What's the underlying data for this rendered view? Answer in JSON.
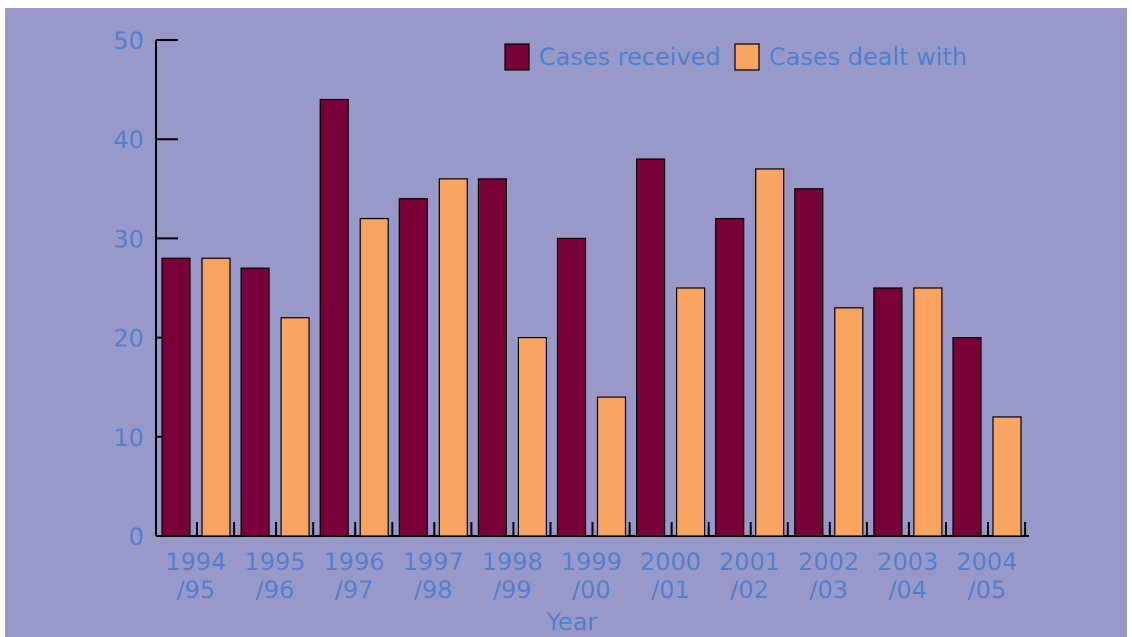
{
  "chart_data": {
    "type": "bar",
    "categories": [
      [
        "1994",
        "/95"
      ],
      [
        "1995",
        "/96"
      ],
      [
        "1996",
        "/97"
      ],
      [
        "1997",
        "/98"
      ],
      [
        "1998",
        "/99"
      ],
      [
        "1999",
        "/00"
      ],
      [
        "2000",
        "/01"
      ],
      [
        "2001",
        "/02"
      ],
      [
        "2002",
        "/03"
      ],
      [
        "2003",
        "/04"
      ],
      [
        "2004",
        "/05"
      ]
    ],
    "series": [
      {
        "name": "Cases received",
        "color": "#7a0039",
        "values": [
          28,
          27,
          44,
          34,
          36,
          30,
          38,
          32,
          35,
          25,
          20
        ]
      },
      {
        "name": "Cases dealt with",
        "color": "#f9a460",
        "values": [
          28,
          22,
          32,
          36,
          20,
          14,
          25,
          37,
          23,
          25,
          12
        ]
      }
    ],
    "title": "",
    "xlabel": "Year",
    "ylabel": "",
    "ylim": [
      0,
      50
    ],
    "yticks": [
      0,
      10,
      20,
      30,
      40,
      50
    ],
    "grid": false,
    "legend_position": "top-right",
    "background_color": "#9899c8",
    "text_color": "#4f7fcf",
    "axis_color": "#000000"
  }
}
